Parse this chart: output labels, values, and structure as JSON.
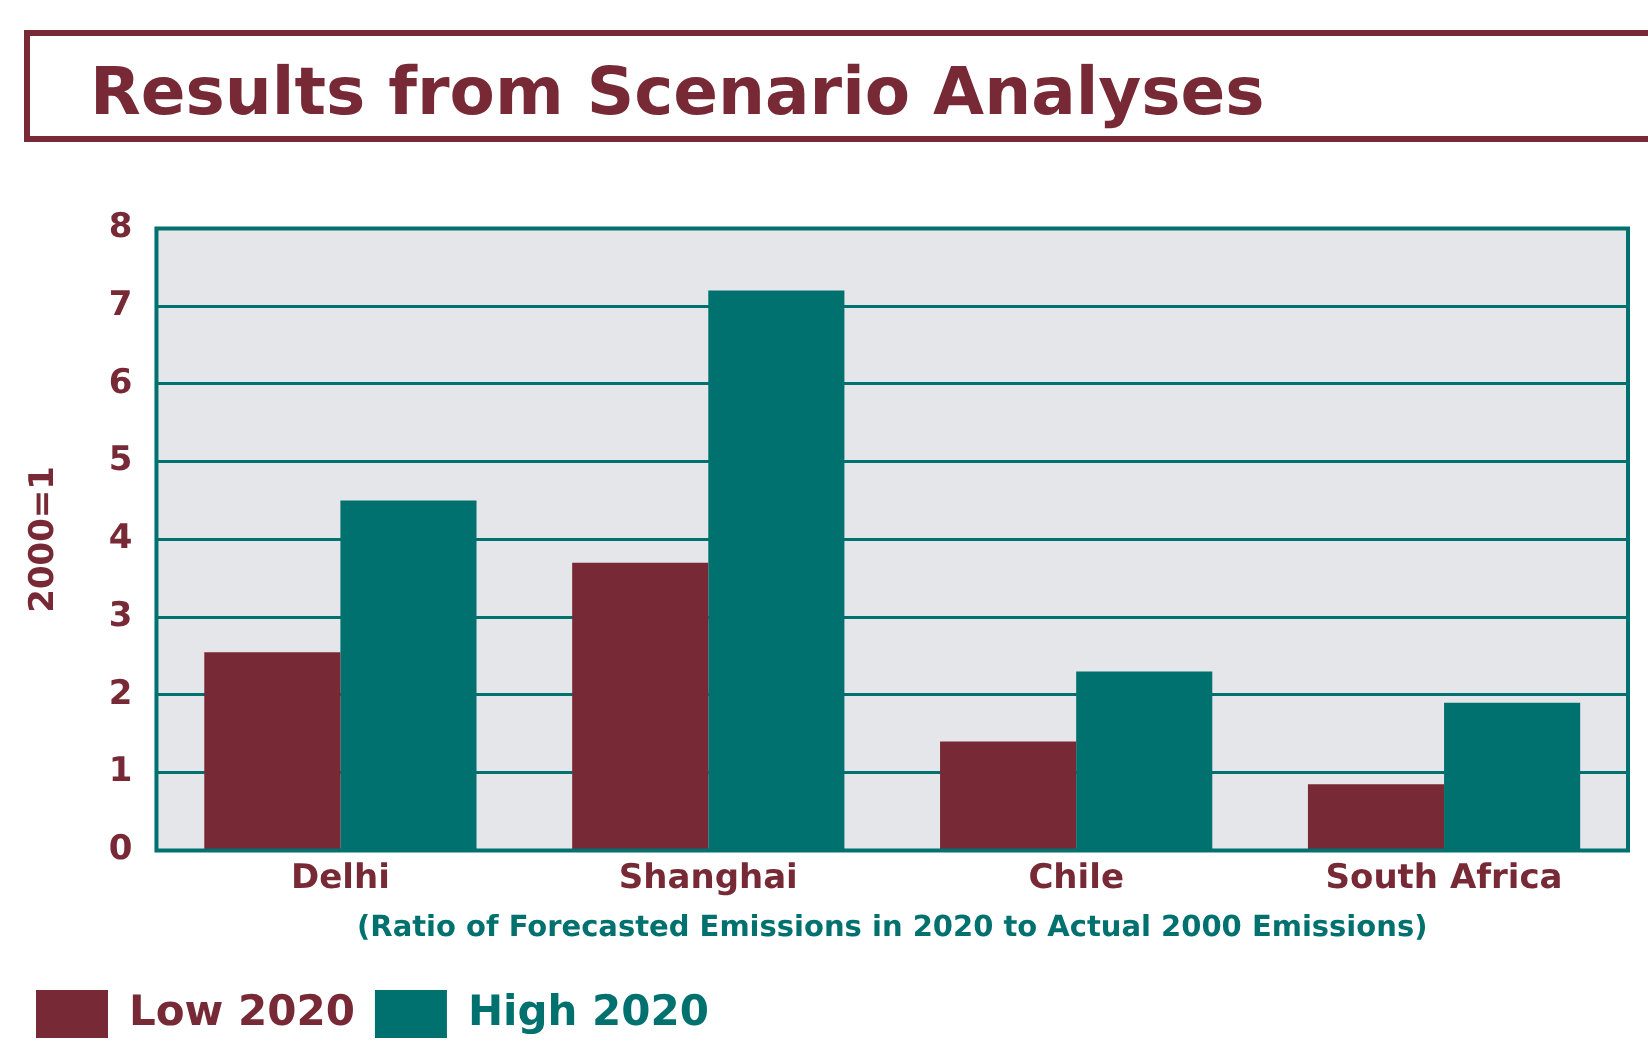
{
  "chart_data": {
    "type": "bar",
    "title": "Results from Scenario Analyses",
    "categories": [
      "Delhi",
      "Shanghai",
      "Chile",
      "South Africa"
    ],
    "xlabel": "(Ratio of Forecasted Emissions in 2020 to Actual 2000 Emissions)",
    "ylabel": "2000=1",
    "series": [
      {
        "name": "Low 2020",
        "color": "#772a35",
        "values": [
          2.55,
          3.7,
          1.4,
          0.85
        ]
      },
      {
        "name": "High 2020",
        "color": "#00716f",
        "values": [
          4.5,
          7.2,
          2.3,
          1.9
        ]
      }
    ],
    "ylim": [
      0,
      8
    ],
    "yticks": [
      0,
      1,
      2,
      3,
      4,
      5,
      6,
      7,
      8
    ],
    "grid": "y",
    "legend": "bottom left"
  }
}
